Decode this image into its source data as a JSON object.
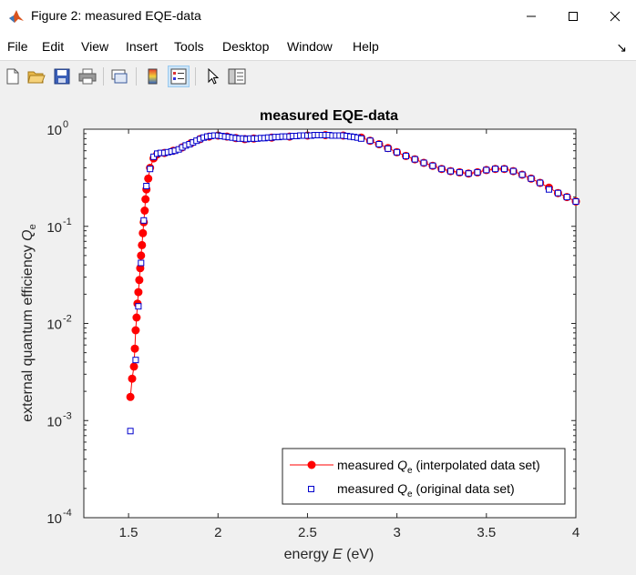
{
  "window": {
    "title": "Figure 2: measured EQE-data"
  },
  "menu": {
    "items": [
      "File",
      "Edit",
      "View",
      "Insert",
      "Tools",
      "Desktop",
      "Window",
      "Help"
    ]
  },
  "toolbar": {
    "icons": [
      "new-figure-icon",
      "open-file-icon",
      "save-icon",
      "print-icon",
      "link-plot-icon",
      "colorbar-icon",
      "legend-icon",
      "pointer-icon",
      "property-editor-icon"
    ]
  },
  "colors": {
    "interpolated": "#ff0000",
    "original": "#0000cc",
    "axes_bg": "#ffffff"
  },
  "chart_data": {
    "type": "scatter",
    "title": "measured EQE-data",
    "xlabel": {
      "prefix": "energy  ",
      "var": "E",
      "suffix": " (eV)"
    },
    "ylabel": {
      "prefix": "external quantum efficiency  ",
      "var": "Q",
      "sub": "e"
    },
    "xlim": [
      1.25,
      4.0
    ],
    "ylim": [
      0.0001,
      1
    ],
    "yscale": "log",
    "xticks": [
      1.5,
      2,
      2.5,
      3,
      3.5,
      4
    ],
    "xtick_labels": [
      "1.5",
      "2",
      "2.5",
      "3",
      "3.5",
      "4"
    ],
    "yticks": [
      0.0001,
      0.001,
      0.01,
      0.1,
      1
    ],
    "ytick_labels": [
      {
        "base": "10",
        "exp": "-4"
      },
      {
        "base": "10",
        "exp": "-3"
      },
      {
        "base": "10",
        "exp": "-2"
      },
      {
        "base": "10",
        "exp": "-1"
      },
      {
        "base": "10",
        "exp": "0"
      }
    ],
    "legend_position": "bottom-right",
    "series": [
      {
        "name": {
          "prefix": "measured  ",
          "var": "Q",
          "sub": "e",
          "suffix": " (interpolated data set)"
        },
        "style": "line-markers",
        "points": [
          [
            1.51,
            0.00175
          ],
          [
            1.52,
            0.0027
          ],
          [
            1.53,
            0.0036
          ],
          [
            1.535,
            0.0055
          ],
          [
            1.54,
            0.0085
          ],
          [
            1.545,
            0.0115
          ],
          [
            1.55,
            0.016
          ],
          [
            1.555,
            0.021
          ],
          [
            1.56,
            0.028
          ],
          [
            1.565,
            0.037
          ],
          [
            1.57,
            0.05
          ],
          [
            1.575,
            0.064
          ],
          [
            1.58,
            0.085
          ],
          [
            1.585,
            0.11
          ],
          [
            1.59,
            0.145
          ],
          [
            1.595,
            0.19
          ],
          [
            1.6,
            0.24
          ],
          [
            1.61,
            0.31
          ],
          [
            1.62,
            0.4
          ],
          [
            1.64,
            0.5
          ],
          [
            1.66,
            0.55
          ],
          [
            1.7,
            0.57
          ],
          [
            1.75,
            0.6
          ],
          [
            1.8,
            0.65
          ],
          [
            1.85,
            0.72
          ],
          [
            1.9,
            0.79
          ],
          [
            1.95,
            0.84
          ],
          [
            2.0,
            0.86
          ],
          [
            2.05,
            0.84
          ],
          [
            2.1,
            0.81
          ],
          [
            2.15,
            0.79
          ],
          [
            2.2,
            0.8
          ],
          [
            2.3,
            0.82
          ],
          [
            2.4,
            0.84
          ],
          [
            2.5,
            0.86
          ],
          [
            2.6,
            0.87
          ],
          [
            2.7,
            0.86
          ],
          [
            2.8,
            0.82
          ],
          [
            2.85,
            0.76
          ],
          [
            2.9,
            0.7
          ],
          [
            2.95,
            0.64
          ],
          [
            3.0,
            0.58
          ],
          [
            3.05,
            0.53
          ],
          [
            3.1,
            0.49
          ],
          [
            3.15,
            0.45
          ],
          [
            3.2,
            0.42
          ],
          [
            3.25,
            0.39
          ],
          [
            3.3,
            0.37
          ],
          [
            3.35,
            0.36
          ],
          [
            3.4,
            0.35
          ],
          [
            3.45,
            0.36
          ],
          [
            3.5,
            0.38
          ],
          [
            3.55,
            0.39
          ],
          [
            3.6,
            0.39
          ],
          [
            3.65,
            0.37
          ],
          [
            3.7,
            0.34
          ],
          [
            3.75,
            0.31
          ],
          [
            3.8,
            0.28
          ],
          [
            3.85,
            0.25
          ],
          [
            3.9,
            0.22
          ],
          [
            3.95,
            0.2
          ],
          [
            4.0,
            0.18
          ]
        ]
      },
      {
        "name": {
          "prefix": "measured  ",
          "var": "Q",
          "sub": "e",
          "suffix": " (original data set)"
        },
        "style": "hollow-squares",
        "points": [
          [
            1.51,
            0.00078
          ],
          [
            1.54,
            0.0042
          ],
          [
            1.555,
            0.015
          ],
          [
            1.57,
            0.042
          ],
          [
            1.585,
            0.115
          ],
          [
            1.6,
            0.26
          ],
          [
            1.62,
            0.39
          ],
          [
            1.64,
            0.52
          ],
          [
            1.66,
            0.56
          ],
          [
            1.68,
            0.57
          ],
          [
            1.7,
            0.57
          ],
          [
            1.72,
            0.58
          ],
          [
            1.74,
            0.59
          ],
          [
            1.76,
            0.6
          ],
          [
            1.78,
            0.62
          ],
          [
            1.8,
            0.65
          ],
          [
            1.82,
            0.68
          ],
          [
            1.84,
            0.7
          ],
          [
            1.86,
            0.73
          ],
          [
            1.88,
            0.76
          ],
          [
            1.9,
            0.79
          ],
          [
            1.92,
            0.82
          ],
          [
            1.94,
            0.84
          ],
          [
            1.96,
            0.85
          ],
          [
            1.98,
            0.86
          ],
          [
            2.0,
            0.86
          ],
          [
            2.02,
            0.85
          ],
          [
            2.04,
            0.84
          ],
          [
            2.06,
            0.83
          ],
          [
            2.08,
            0.82
          ],
          [
            2.1,
            0.81
          ],
          [
            2.12,
            0.8
          ],
          [
            2.14,
            0.8
          ],
          [
            2.16,
            0.79
          ],
          [
            2.18,
            0.8
          ],
          [
            2.2,
            0.8
          ],
          [
            2.22,
            0.8
          ],
          [
            2.24,
            0.81
          ],
          [
            2.26,
            0.81
          ],
          [
            2.28,
            0.82
          ],
          [
            2.3,
            0.82
          ],
          [
            2.32,
            0.83
          ],
          [
            2.34,
            0.83
          ],
          [
            2.36,
            0.84
          ],
          [
            2.38,
            0.84
          ],
          [
            2.4,
            0.84
          ],
          [
            2.42,
            0.85
          ],
          [
            2.44,
            0.85
          ],
          [
            2.46,
            0.86
          ],
          [
            2.48,
            0.86
          ],
          [
            2.5,
            0.86
          ],
          [
            2.52,
            0.86
          ],
          [
            2.54,
            0.87
          ],
          [
            2.56,
            0.87
          ],
          [
            2.58,
            0.87
          ],
          [
            2.6,
            0.87
          ],
          [
            2.62,
            0.87
          ],
          [
            2.64,
            0.86
          ],
          [
            2.66,
            0.86
          ],
          [
            2.68,
            0.86
          ],
          [
            2.7,
            0.86
          ],
          [
            2.72,
            0.85
          ],
          [
            2.74,
            0.84
          ],
          [
            2.76,
            0.83
          ],
          [
            2.78,
            0.82
          ],
          [
            2.8,
            0.8
          ],
          [
            2.85,
            0.76
          ],
          [
            2.9,
            0.7
          ],
          [
            2.95,
            0.63
          ],
          [
            3.0,
            0.58
          ],
          [
            3.05,
            0.53
          ],
          [
            3.1,
            0.49
          ],
          [
            3.15,
            0.45
          ],
          [
            3.2,
            0.42
          ],
          [
            3.25,
            0.39
          ],
          [
            3.3,
            0.37
          ],
          [
            3.35,
            0.36
          ],
          [
            3.4,
            0.35
          ],
          [
            3.45,
            0.36
          ],
          [
            3.5,
            0.38
          ],
          [
            3.55,
            0.39
          ],
          [
            3.6,
            0.39
          ],
          [
            3.65,
            0.37
          ],
          [
            3.7,
            0.34
          ],
          [
            3.75,
            0.31
          ],
          [
            3.8,
            0.28
          ],
          [
            3.85,
            0.24
          ],
          [
            3.9,
            0.22
          ],
          [
            3.95,
            0.2
          ],
          [
            4.0,
            0.18
          ]
        ]
      }
    ]
  }
}
